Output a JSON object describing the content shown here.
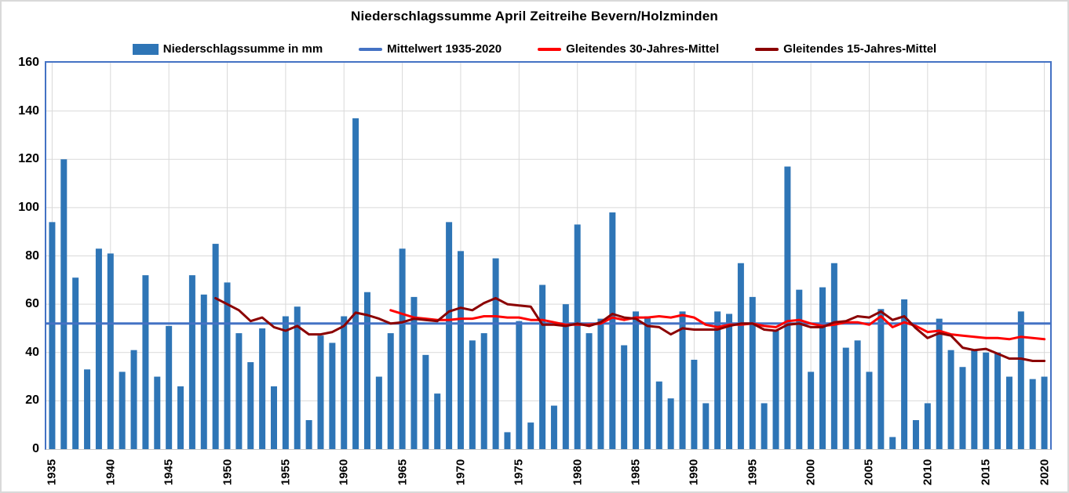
{
  "title": "Niederschlagssumme April Zeitreihe Bevern/Holzminden",
  "legend": {
    "items": [
      {
        "label": "Niederschlagssumme in mm",
        "swatch": "bar",
        "color": "#2E75B6"
      },
      {
        "label": "Mittelwert 1935-2020",
        "swatch": "line",
        "color": "#4472C4"
      },
      {
        "label": "Gleitendes 30-Jahres-Mittel",
        "swatch": "line",
        "color": "#FF0000"
      },
      {
        "label": "Gleitendes 15-Jahres-Mittel",
        "swatch": "line",
        "color": "#8B0000"
      }
    ]
  },
  "chart_data": {
    "type": "bar",
    "title": "Niederschlagssumme April Zeitreihe Bevern/Holzminden",
    "xlabel": "",
    "ylabel": "",
    "x_start": 1935,
    "x_end": 2020,
    "ylim": [
      0,
      160
    ],
    "yticks": [
      0,
      20,
      40,
      60,
      80,
      100,
      120,
      140,
      160
    ],
    "xticks": [
      1935,
      1940,
      1945,
      1950,
      1955,
      1960,
      1965,
      1970,
      1975,
      1980,
      1985,
      1990,
      1995,
      2000,
      2005,
      2010,
      2015,
      2020
    ],
    "grid": true,
    "legend_position": "top",
    "colors": {
      "bar": "#2E75B6",
      "mean_line": "#4472C4",
      "moving_30yr": "#FF0000",
      "moving_15yr": "#8B0000",
      "gridline": "#D9D9D9"
    },
    "series": [
      {
        "name": "Niederschlagssumme in mm",
        "type": "bar",
        "color": "#2E75B6",
        "start_year": 1935,
        "values": [
          94,
          120,
          71,
          33,
          83,
          81,
          32,
          41,
          72,
          30,
          51,
          26,
          72,
          64,
          85,
          69,
          48,
          36,
          50,
          26,
          55,
          59,
          12,
          47,
          44,
          55,
          137,
          65,
          30,
          48,
          83,
          63,
          39,
          23,
          94,
          82,
          45,
          48,
          79,
          7,
          53,
          11,
          68,
          18,
          60,
          93,
          48,
          54,
          98,
          43,
          57,
          55,
          28,
          21,
          57,
          37,
          19,
          57,
          56,
          77,
          63,
          19,
          49,
          117,
          66,
          32,
          67,
          77,
          42,
          45,
          32,
          58,
          5,
          62,
          12,
          19,
          54,
          41,
          34,
          41,
          40,
          40,
          30,
          57,
          29,
          30
        ]
      },
      {
        "name": "Mittelwert 1935-2020",
        "type": "line",
        "color": "#4472C4",
        "constant_value": 52,
        "start_year": 1935,
        "end_year": 2020
      },
      {
        "name": "Gleitendes 30-Jahres-Mittel",
        "type": "line",
        "color": "#FF0000",
        "start_year": 1964,
        "values": [
          57.5,
          56,
          54.5,
          54,
          53.5,
          53.5,
          54,
          54,
          55,
          55,
          54.5,
          54.5,
          53.5,
          53.5,
          52.5,
          51.5,
          51.5,
          51.5,
          52,
          54.5,
          53.5,
          54.5,
          54.5,
          55,
          54.5,
          55.5,
          54.5,
          51.5,
          50.5,
          51.5,
          51.5,
          52,
          51,
          50.5,
          53,
          53.5,
          52,
          51,
          51.5,
          52.5,
          52.5,
          51.5,
          55,
          50.5,
          52.5,
          51,
          48.5,
          49,
          47.5,
          47,
          46.5,
          46,
          46,
          45.5,
          46.5,
          46,
          45.5
        ]
      },
      {
        "name": "Gleitendes 15-Jahres-Mittel",
        "type": "line",
        "color": "#8B0000",
        "start_year": 1949,
        "values": [
          62.5,
          60,
          57.5,
          53,
          54.5,
          50.5,
          49,
          51,
          47.5,
          47.5,
          48.5,
          51,
          56.5,
          55.5,
          54,
          52,
          52.5,
          54,
          53.5,
          53,
          57,
          58.5,
          57.5,
          60.5,
          62.5,
          60,
          59.5,
          59,
          51.5,
          51.5,
          51,
          52,
          51,
          52.5,
          56,
          54.5,
          54,
          51,
          50.5,
          47.5,
          50,
          49.5,
          49.5,
          49.5,
          51,
          52,
          52,
          49.5,
          49,
          51.5,
          52,
          50.5,
          50.5,
          52.5,
          53,
          55,
          54.5,
          57,
          53.5,
          55,
          50,
          46,
          48,
          47,
          42,
          41,
          41.5,
          39.5,
          37.5,
          37.5,
          36.5,
          36.5
        ]
      }
    ]
  }
}
